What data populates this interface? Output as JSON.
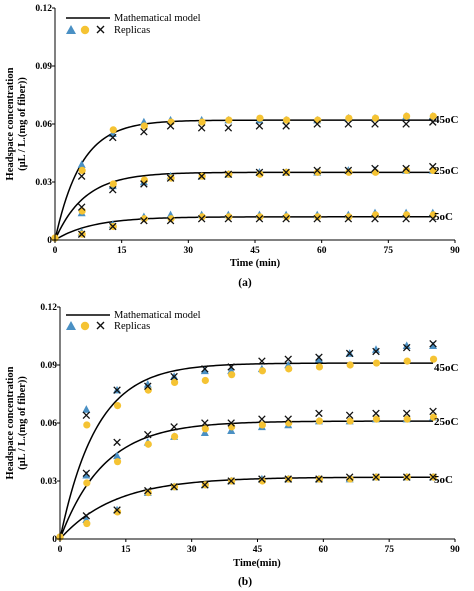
{
  "chart_data": [
    {
      "type": "scatter",
      "panel_label": "(a)",
      "xlabel": "Time (min)",
      "ylabel": "Headspace concentration\n(µL / L.(mg of fiber))",
      "xlim": [
        0,
        90
      ],
      "ylim": [
        0,
        0.12
      ],
      "xticks": [
        "0",
        "15",
        "30",
        "45",
        "60",
        "75",
        "90"
      ],
      "yticks": [
        "0",
        "0.03",
        "0.06",
        "0.09",
        "0.12"
      ],
      "legend": {
        "model": "Mathematical  model",
        "replicas": "Replicas",
        "placement": "top-left"
      },
      "colors": {
        "triangle": "#4a90c4",
        "circle": "#f5c333",
        "cross": "#111111",
        "model": "#000000"
      },
      "x": [
        6,
        13,
        20,
        26,
        33,
        39,
        46,
        52,
        59,
        66,
        72,
        79,
        85
      ],
      "series": [
        {
          "label": "45oC",
          "model": {
            "plateau": 0.062,
            "k": 0.17
          },
          "triangle": [
            0.039,
            0.055,
            0.061,
            0.062,
            0.062,
            0.062,
            0.062,
            0.062,
            0.062,
            0.063,
            0.063,
            0.064,
            0.064
          ],
          "circle": [
            0.036,
            0.057,
            0.059,
            0.061,
            0.061,
            0.062,
            0.063,
            0.062,
            0.062,
            0.063,
            0.063,
            0.064,
            0.064
          ],
          "cross": [
            0.033,
            0.053,
            0.056,
            0.059,
            0.058,
            0.058,
            0.059,
            0.059,
            0.06,
            0.06,
            0.06,
            0.06,
            0.061
          ]
        },
        {
          "label": "25oC",
          "model": {
            "plateau": 0.035,
            "k": 0.15
          },
          "triangle": [
            0.014,
            0.028,
            0.03,
            0.033,
            0.033,
            0.034,
            0.035,
            0.035,
            0.035,
            0.036,
            0.036,
            0.036,
            0.036
          ],
          "circle": [
            0.015,
            0.029,
            0.031,
            0.032,
            0.033,
            0.034,
            0.034,
            0.035,
            0.035,
            0.035,
            0.035,
            0.036,
            0.036
          ],
          "cross": [
            0.017,
            0.026,
            0.029,
            0.032,
            0.033,
            0.034,
            0.035,
            0.035,
            0.036,
            0.036,
            0.037,
            0.037,
            0.038
          ]
        },
        {
          "label": "5oC",
          "model": {
            "plateau": 0.012,
            "k": 0.12
          },
          "triangle": [
            0.004,
            0.008,
            0.012,
            0.013,
            0.013,
            0.013,
            0.013,
            0.013,
            0.013,
            0.013,
            0.014,
            0.014,
            0.014
          ],
          "circle": [
            0.003,
            0.007,
            0.011,
            0.011,
            0.012,
            0.012,
            0.012,
            0.012,
            0.012,
            0.012,
            0.013,
            0.013,
            0.013
          ],
          "cross": [
            0.003,
            0.007,
            0.01,
            0.01,
            0.011,
            0.011,
            0.011,
            0.011,
            0.011,
            0.011,
            0.011,
            0.011,
            0.011
          ]
        }
      ]
    },
    {
      "type": "scatter",
      "panel_label": "(b)",
      "xlabel": "Time(min)",
      "ylabel": "Headspace concentration\n(µL / L.(mg of fiber))",
      "xlim": [
        0,
        90
      ],
      "ylim": [
        0,
        0.12
      ],
      "xticks": [
        "0",
        "15",
        "30",
        "45",
        "60",
        "75",
        "90"
      ],
      "yticks": [
        "0",
        "0.03",
        "0.06",
        "0.09",
        "0.12"
      ],
      "legend": {
        "model": "Mathematical  model",
        "replicas": "Replicas",
        "placement": "top-left"
      },
      "colors": {
        "triangle": "#4a90c4",
        "circle": "#f5c333",
        "cross": "#111111",
        "model": "#000000"
      },
      "x": [
        6,
        13,
        20,
        26,
        33,
        39,
        46,
        52,
        59,
        66,
        72,
        79,
        85
      ],
      "series": [
        {
          "label": "45oC",
          "model": {
            "plateau": 0.091,
            "k": 0.12
          },
          "triangle": [
            0.067,
            0.077,
            0.08,
            0.084,
            0.087,
            0.087,
            0.088,
            0.09,
            0.093,
            0.096,
            0.098,
            0.1,
            0.1
          ],
          "circle": [
            0.059,
            0.069,
            0.077,
            0.081,
            0.082,
            0.085,
            0.087,
            0.088,
            0.089,
            0.09,
            0.091,
            0.092,
            0.093
          ],
          "cross": [
            0.064,
            0.077,
            0.079,
            0.084,
            0.088,
            0.089,
            0.092,
            0.093,
            0.094,
            0.096,
            0.097,
            0.099,
            0.101
          ]
        },
        {
          "label": "25oC",
          "model": {
            "plateau": 0.061,
            "k": 0.1
          },
          "triangle": [
            0.033,
            0.043,
            0.05,
            0.053,
            0.055,
            0.056,
            0.058,
            0.059,
            0.061,
            0.061,
            0.062,
            0.062,
            0.063
          ],
          "circle": [
            0.029,
            0.04,
            0.049,
            0.053,
            0.057,
            0.058,
            0.059,
            0.06,
            0.061,
            0.061,
            0.062,
            0.062,
            0.063
          ],
          "cross": [
            0.034,
            0.05,
            0.054,
            0.058,
            0.06,
            0.06,
            0.062,
            0.062,
            0.065,
            0.064,
            0.065,
            0.065,
            0.066
          ]
        },
        {
          "label": "5oC",
          "model": {
            "plateau": 0.032,
            "k": 0.08
          },
          "triangle": [
            0.01,
            0.015,
            0.024,
            0.027,
            0.028,
            0.03,
            0.031,
            0.031,
            0.031,
            0.031,
            0.032,
            0.032,
            0.032
          ],
          "circle": [
            0.008,
            0.014,
            0.024,
            0.027,
            0.028,
            0.03,
            0.03,
            0.031,
            0.031,
            0.031,
            0.032,
            0.032,
            0.032
          ],
          "cross": [
            0.012,
            0.015,
            0.025,
            0.027,
            0.028,
            0.03,
            0.031,
            0.031,
            0.031,
            0.032,
            0.032,
            0.032,
            0.032
          ]
        }
      ]
    }
  ]
}
